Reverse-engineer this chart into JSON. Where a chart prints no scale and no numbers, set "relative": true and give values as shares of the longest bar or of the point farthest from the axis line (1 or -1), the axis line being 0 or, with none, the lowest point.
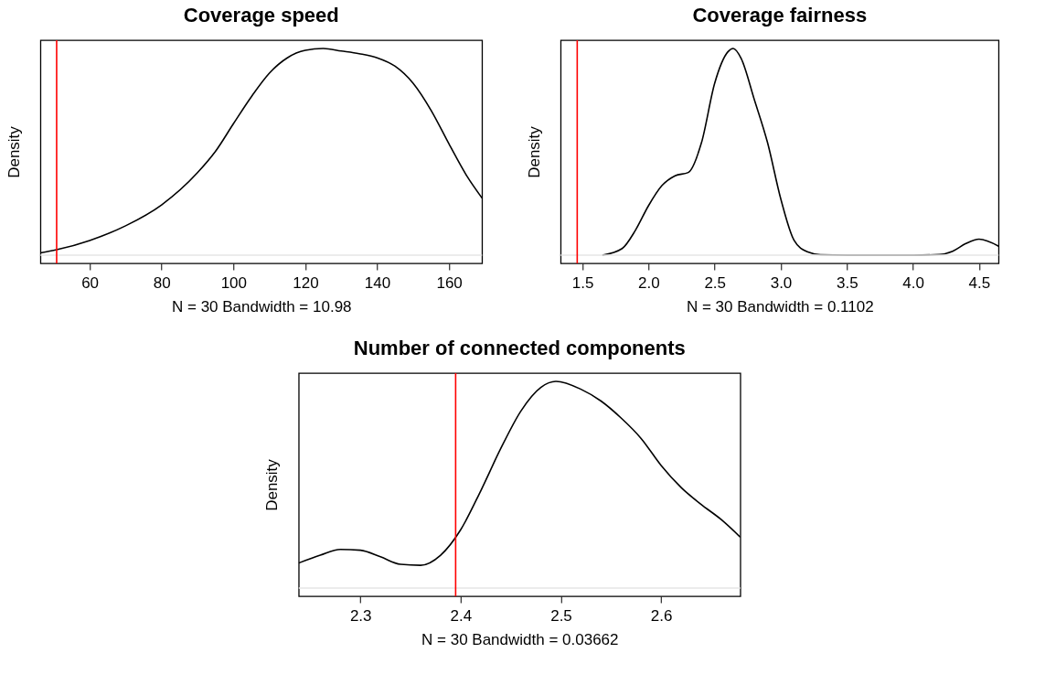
{
  "chart_data": [
    {
      "type": "line",
      "title": "Coverage speed",
      "xlabel": "N = 30   Bandwidth = 10.98",
      "ylabel": "Density",
      "relative": true,
      "tick_labels": "x",
      "grid": false,
      "xlim": [
        46.3,
        169.2
      ],
      "xticks": [
        60,
        80,
        100,
        120,
        140,
        160
      ],
      "series": [
        {
          "color": "#000000",
          "x": [
            46.3,
            50.8,
            60,
            70,
            80,
            90,
            95,
            100,
            105,
            110,
            115,
            120,
            125,
            130,
            135,
            140,
            145,
            150,
            155,
            160,
            165,
            169.2
          ],
          "values": [
            0.011,
            0.026,
            0.071,
            0.142,
            0.243,
            0.399,
            0.502,
            0.636,
            0.767,
            0.881,
            0.955,
            0.991,
            1.0,
            0.988,
            0.975,
            0.955,
            0.914,
            0.832,
            0.701,
            0.538,
            0.382,
            0.276
          ]
        }
      ],
      "ref_lines": [
        {
          "axis": "y",
          "value": 0,
          "color": "#e6e6e6"
        },
        {
          "axis": "x",
          "value": 50.8,
          "color": "#ff0000"
        }
      ]
    },
    {
      "type": "line",
      "title": "Coverage fairness",
      "xlabel": "N = 30   Bandwidth = 0.1102",
      "ylabel": "Density",
      "relative": true,
      "tick_labels": "x",
      "grid": false,
      "xlim": [
        1.335,
        4.648
      ],
      "xticks": [
        1.5,
        {
          "value": 2,
          "label": "2.0"
        },
        2.5,
        {
          "value": 3,
          "label": "3.0"
        },
        3.5,
        {
          "value": 4,
          "label": "4.0"
        },
        4.5
      ],
      "series": [
        {
          "color": "#000000",
          "x": [
            1.65,
            1.8,
            1.9,
            2.0,
            2.1,
            2.2,
            2.3,
            2.4,
            2.5,
            2.6,
            2.64,
            2.7,
            2.8,
            2.9,
            3.0,
            3.1,
            3.2,
            3.3,
            3.5,
            4.0,
            4.2,
            4.3,
            4.4,
            4.5,
            4.648
          ],
          "values": [
            0,
            0.032,
            0.12,
            0.24,
            0.336,
            0.384,
            0.4,
            0.544,
            0.832,
            0.984,
            1.0,
            0.952,
            0.752,
            0.544,
            0.272,
            0.072,
            0.016,
            0.002,
            0,
            0,
            0.003,
            0.019,
            0.056,
            0.077,
            0.043
          ]
        }
      ],
      "ref_lines": [
        {
          "axis": "y",
          "value": 0,
          "color": "#e6e6e6"
        },
        {
          "axis": "x",
          "value": 1.46,
          "color": "#ff0000"
        }
      ]
    },
    {
      "type": "line",
      "title": "Number of connected components",
      "xlabel": "N = 30   Bandwidth = 0.03662",
      "ylabel": "Density",
      "relative": true,
      "tick_labels": "x",
      "grid": false,
      "xlim": [
        2.2385,
        2.679
      ],
      "xticks": [
        2.3,
        2.4,
        2.5,
        2.6
      ],
      "series": [
        {
          "color": "#000000",
          "x": [
            2.2385,
            2.26,
            2.28,
            2.3,
            2.32,
            2.34,
            2.36,
            2.38,
            2.4,
            2.42,
            2.44,
            2.46,
            2.48,
            2.495,
            2.52,
            2.54,
            2.56,
            2.58,
            2.6,
            2.62,
            2.64,
            2.66,
            2.679
          ],
          "values": [
            0.121,
            0.159,
            0.187,
            0.183,
            0.151,
            0.115,
            0.11,
            0.159,
            0.282,
            0.47,
            0.675,
            0.856,
            0.971,
            1.0,
            0.962,
            0.905,
            0.823,
            0.724,
            0.593,
            0.486,
            0.404,
            0.331,
            0.246
          ]
        }
      ],
      "ref_lines": [
        {
          "axis": "y",
          "value": 0,
          "color": "#e6e6e6"
        },
        {
          "axis": "x",
          "value": 2.395,
          "color": "#ff0000"
        }
      ]
    }
  ]
}
